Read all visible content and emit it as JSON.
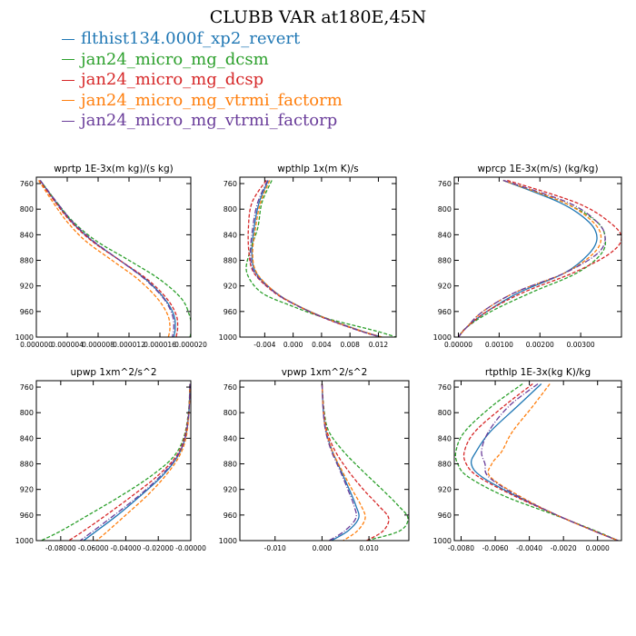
{
  "title": "CLUBB VAR at180E,45N",
  "colors": {
    "flthist134.000f_xp2_revert": "#1f77b4",
    "jan24_micro_mg_dcsm": "#2ca02c",
    "jan24_micro_mg_dcsp": "#d62728",
    "jan24_micro_mg_vtrmi_factorm": "#ff7f0e",
    "jan24_micro_mg_vtrmi_factorp": "#6a3d9a"
  },
  "legend": [
    {
      "label": "flthist134.000f_xp2_revert",
      "color": "#1f77b4"
    },
    {
      "label": "jan24_micro_mg_dcsm",
      "color": "#2ca02c"
    },
    {
      "label": "jan24_micro_mg_dcsp",
      "color": "#d62728"
    },
    {
      "label": "jan24_micro_mg_vtrmi_factorm",
      "color": "#ff7f0e"
    },
    {
      "label": "jan24_micro_mg_vtrmi_factorp",
      "color": "#6a3d9a"
    }
  ],
  "chart_data": [
    {
      "type": "line",
      "title": "wprtp  1E-3x(m kg)/(s kg)",
      "xlim": [
        0.0,
        2e-05
      ],
      "ylim": [
        1000,
        750
      ],
      "xticks": [
        0.0,
        4e-06,
        8e-06,
        1.2e-05,
        1.6e-05,
        2e-05
      ],
      "xtick_labels": [
        "0.000000",
        "0.000004",
        "0.000008",
        "0.000012",
        "0.000016",
        "0.000020"
      ],
      "yticks": [
        760,
        800,
        840,
        880,
        920,
        960,
        1000
      ],
      "ytick_labels": [
        "760",
        "800",
        "840",
        "880",
        "920",
        "960",
        "1000"
      ],
      "y": [
        755,
        790,
        820,
        850,
        880,
        910,
        940,
        965,
        985,
        1000
      ],
      "series": [
        {
          "name": "flthist134.000f_xp2_revert",
          "x": [
            5e-07,
            2.6e-06,
            4.6e-06,
            7.3e-06,
            1.08e-05,
            1.42e-05,
            1.66e-05,
            1.78e-05,
            1.8e-05,
            1.78e-05
          ]
        },
        {
          "name": "jan24_micro_mg_dcsm",
          "x": [
            5e-07,
            2.7e-06,
            4.8e-06,
            7.8e-06,
            1.2e-05,
            1.6e-05,
            1.88e-05,
            1.98e-05,
            2.01e-05,
            1.99e-05
          ]
        },
        {
          "name": "jan24_micro_mg_dcsp",
          "x": [
            4e-07,
            2.5e-06,
            4.5e-06,
            7.2e-06,
            1.08e-05,
            1.44e-05,
            1.69e-05,
            1.81e-05,
            1.83e-05,
            1.81e-05
          ]
        },
        {
          "name": "jan24_micro_mg_vtrmi_factorm",
          "x": [
            3e-07,
            2.2e-06,
            4e-06,
            6.4e-06,
            9.8e-06,
            1.32e-05,
            1.57e-05,
            1.7e-05,
            1.73e-05,
            1.71e-05
          ]
        },
        {
          "name": "jan24_micro_mg_vtrmi_factorp",
          "x": [
            5e-07,
            2.7e-06,
            4.7e-06,
            7.4e-06,
            1.08e-05,
            1.41e-05,
            1.65e-05,
            1.76e-05,
            1.78e-05,
            1.76e-05
          ]
        }
      ]
    },
    {
      "type": "line",
      "title": "wpthlp  1x(m K)/s",
      "xlim": [
        -0.0075,
        0.0145
      ],
      "ylim": [
        1000,
        750
      ],
      "xticks": [
        -0.004,
        0.0,
        0.004,
        0.008,
        0.012
      ],
      "xtick_labels": [
        "-0.004",
        "0.000",
        "0.004",
        "0.008",
        "0.012"
      ],
      "yticks": [
        760,
        800,
        840,
        880,
        920,
        960,
        1000
      ],
      "ytick_labels": [
        "760",
        "800",
        "840",
        "880",
        "920",
        "960",
        "1000"
      ],
      "y": [
        755,
        790,
        830,
        870,
        900,
        930,
        950,
        970,
        990,
        1000
      ],
      "series": [
        {
          "name": "flthist134.000f_xp2_revert",
          "x": [
            -0.0035,
            -0.0048,
            -0.0055,
            -0.0058,
            -0.0052,
            -0.0025,
            0.0005,
            0.0045,
            0.0095,
            0.0125
          ]
        },
        {
          "name": "jan24_micro_mg_dcsm",
          "x": [
            -0.003,
            -0.0044,
            -0.005,
            -0.0062,
            -0.0065,
            -0.0045,
            -0.0005,
            0.0045,
            0.0115,
            0.0145
          ]
        },
        {
          "name": "jan24_micro_mg_dcsp",
          "x": [
            -0.0038,
            -0.0058,
            -0.0063,
            -0.0062,
            -0.0055,
            -0.0027,
            0.0004,
            0.0043,
            0.0093,
            0.0123
          ]
        },
        {
          "name": "jan24_micro_mg_vtrmi_factorm",
          "x": [
            -0.0033,
            -0.0046,
            -0.0053,
            -0.0057,
            -0.0051,
            -0.0025,
            0.0005,
            0.0045,
            0.0095,
            0.0125
          ]
        },
        {
          "name": "jan24_micro_mg_vtrmi_factorp",
          "x": [
            -0.0036,
            -0.005,
            -0.0057,
            -0.006,
            -0.0054,
            -0.0026,
            0.0004,
            0.0044,
            0.0093,
            0.0123
          ]
        }
      ]
    },
    {
      "type": "line",
      "title": "wprcp  1E-3x(m/s) (kg/kg)",
      "xlim": [
        -0.0001,
        0.004
      ],
      "ylim": [
        1000,
        750
      ],
      "xticks": [
        0.0,
        0.001,
        0.002,
        0.003
      ],
      "xtick_labels": [
        "0.00000",
        "0.00100",
        "0.00200",
        "0.00300"
      ],
      "yticks": [
        760,
        800,
        840,
        880,
        920,
        960,
        1000
      ],
      "ytick_labels": [
        "760",
        "800",
        "840",
        "880",
        "920",
        "960",
        "1000"
      ],
      "y": [
        755,
        790,
        820,
        845,
        870,
        900,
        930,
        960,
        985,
        1000
      ],
      "series": [
        {
          "name": "flthist134.000f_xp2_revert",
          "x": [
            0.0011,
            0.0025,
            0.0032,
            0.0034,
            0.0032,
            0.0026,
            0.0015,
            0.0007,
            0.0002,
            0.0
          ]
        },
        {
          "name": "jan24_micro_mg_dcsm",
          "x": [
            0.0011,
            0.0026,
            0.0034,
            0.0036,
            0.0035,
            0.0029,
            0.0018,
            0.0008,
            0.0002,
            0.0
          ]
        },
        {
          "name": "jan24_micro_mg_dcsp",
          "x": [
            0.0012,
            0.0029,
            0.0037,
            0.004,
            0.0037,
            0.0028,
            0.0016,
            0.0007,
            0.0002,
            0.0
          ]
        },
        {
          "name": "jan24_micro_mg_vtrmi_factorm",
          "x": [
            0.0011,
            0.0026,
            0.0033,
            0.0035,
            0.0033,
            0.0026,
            0.0014,
            0.0006,
            0.0002,
            0.0
          ]
        },
        {
          "name": "jan24_micro_mg_vtrmi_factorp",
          "x": [
            0.0011,
            0.0027,
            0.0034,
            0.0036,
            0.0034,
            0.0026,
            0.0014,
            0.0006,
            0.0002,
            0.0
          ]
        }
      ]
    },
    {
      "type": "line",
      "title": "upwp  1xm^2/s^2",
      "xlim": [
        -0.095,
        0.0
      ],
      "ylim": [
        1000,
        750
      ],
      "xticks": [
        -0.08,
        -0.06,
        -0.04,
        -0.02,
        0.0
      ],
      "xtick_labels": [
        "-0.08000",
        "-0.06000",
        "-0.04000",
        "-0.02000",
        "-0.00000"
      ],
      "yticks": [
        760,
        800,
        840,
        880,
        920,
        960,
        1000
      ],
      "ytick_labels": [
        "760",
        "800",
        "840",
        "880",
        "920",
        "960",
        "1000"
      ],
      "y": [
        755,
        800,
        840,
        870,
        900,
        930,
        960,
        985,
        1000
      ],
      "series": [
        {
          "name": "flthist134.000f_xp2_revert",
          "x": [
            -0.0005,
            -0.0012,
            -0.0035,
            -0.0085,
            -0.018,
            -0.031,
            -0.045,
            -0.058,
            -0.066
          ]
        },
        {
          "name": "jan24_micro_mg_dcsm",
          "x": [
            -0.0005,
            -0.0015,
            -0.0045,
            -0.011,
            -0.025,
            -0.043,
            -0.063,
            -0.08,
            -0.092
          ]
        },
        {
          "name": "jan24_micro_mg_dcsp",
          "x": [
            -0.0005,
            -0.0013,
            -0.004,
            -0.0095,
            -0.021,
            -0.036,
            -0.052,
            -0.066,
            -0.075
          ]
        },
        {
          "name": "jan24_micro_mg_vtrmi_factorm",
          "x": [
            -0.0005,
            -0.0011,
            -0.003,
            -0.0075,
            -0.016,
            -0.027,
            -0.04,
            -0.051,
            -0.058
          ]
        },
        {
          "name": "jan24_micro_mg_vtrmi_factorp",
          "x": [
            -0.0005,
            -0.0012,
            -0.0036,
            -0.0088,
            -0.019,
            -0.032,
            -0.047,
            -0.06,
            -0.068
          ]
        }
      ]
    },
    {
      "type": "line",
      "title": "vpwp  1xm^2/s^2",
      "xlim": [
        -0.0175,
        0.0185
      ],
      "ylim": [
        1000,
        750
      ],
      "xticks": [
        -0.01,
        0.0,
        0.01
      ],
      "xtick_labels": [
        "-0.010",
        "0.000",
        "0.010"
      ],
      "yticks": [
        760,
        800,
        840,
        880,
        920,
        960,
        1000
      ],
      "ytick_labels": [
        "760",
        "800",
        "840",
        "880",
        "920",
        "960",
        "1000"
      ],
      "y": [
        755,
        800,
        830,
        860,
        890,
        920,
        945,
        965,
        985,
        1000
      ],
      "series": [
        {
          "name": "flthist134.000f_xp2_revert",
          "x": [
            0.0,
            0.0003,
            0.0009,
            0.0022,
            0.004,
            0.0058,
            0.0072,
            0.0078,
            0.0055,
            0.002
          ]
        },
        {
          "name": "jan24_micro_mg_dcsm",
          "x": [
            0.0,
            0.0005,
            0.0015,
            0.0045,
            0.0085,
            0.0128,
            0.0162,
            0.0183,
            0.0165,
            0.0095
          ]
        },
        {
          "name": "jan24_micro_mg_dcsp",
          "x": [
            0.0,
            0.0004,
            0.0011,
            0.0028,
            0.0055,
            0.0088,
            0.012,
            0.0142,
            0.013,
            0.0095
          ]
        },
        {
          "name": "jan24_micro_mg_vtrmi_factorm",
          "x": [
            0.0,
            0.0003,
            0.0009,
            0.0022,
            0.0042,
            0.0064,
            0.0083,
            0.0092,
            0.0075,
            0.0045
          ]
        },
        {
          "name": "jan24_micro_mg_vtrmi_factorp",
          "x": [
            0.0,
            0.0003,
            0.0008,
            0.002,
            0.0038,
            0.0055,
            0.0068,
            0.0072,
            0.0048,
            0.0015
          ]
        }
      ]
    },
    {
      "type": "line",
      "title": "rtpthlp  1E-3x(kg K)/kg",
      "xlim": [
        -0.0084,
        0.0014
      ],
      "ylim": [
        1000,
        750
      ],
      "xticks": [
        -0.008,
        -0.006,
        -0.004,
        -0.002,
        0.0
      ],
      "xtick_labels": [
        "-0.0080",
        "-0.0060",
        "-0.0040",
        "-0.0020",
        "0.0000"
      ],
      "yticks": [
        760,
        800,
        840,
        880,
        920,
        960,
        1000
      ],
      "ytick_labels": [
        "760",
        "800",
        "840",
        "880",
        "920",
        "960",
        "1000"
      ],
      "y": [
        755,
        790,
        830,
        860,
        880,
        900,
        930,
        960,
        985,
        1000
      ],
      "series": [
        {
          "name": "flthist134.000f_xp2_revert",
          "x": [
            -0.0033,
            -0.0047,
            -0.0063,
            -0.0071,
            -0.0074,
            -0.0068,
            -0.0048,
            -0.0024,
            -0.0002,
            0.0012
          ]
        },
        {
          "name": "jan24_micro_mg_dcsm",
          "x": [
            -0.0044,
            -0.0062,
            -0.0078,
            -0.0083,
            -0.0082,
            -0.0076,
            -0.0055,
            -0.0025,
            -0.0001,
            0.0012
          ]
        },
        {
          "name": "jan24_micro_mg_dcsp",
          "x": [
            -0.0038,
            -0.0055,
            -0.0072,
            -0.0078,
            -0.0077,
            -0.007,
            -0.0049,
            -0.0024,
            -0.0002,
            0.0012
          ]
        },
        {
          "name": "jan24_micro_mg_vtrmi_factorm",
          "x": [
            -0.0028,
            -0.0038,
            -0.005,
            -0.0056,
            -0.0062,
            -0.0063,
            -0.0046,
            -0.0024,
            -0.0002,
            0.0012
          ]
        },
        {
          "name": "jan24_micro_mg_vtrmi_factorp",
          "x": [
            -0.0035,
            -0.0052,
            -0.0064,
            -0.0068,
            -0.0066,
            -0.0064,
            -0.0047,
            -0.0024,
            -0.0002,
            0.0012
          ]
        }
      ]
    }
  ]
}
